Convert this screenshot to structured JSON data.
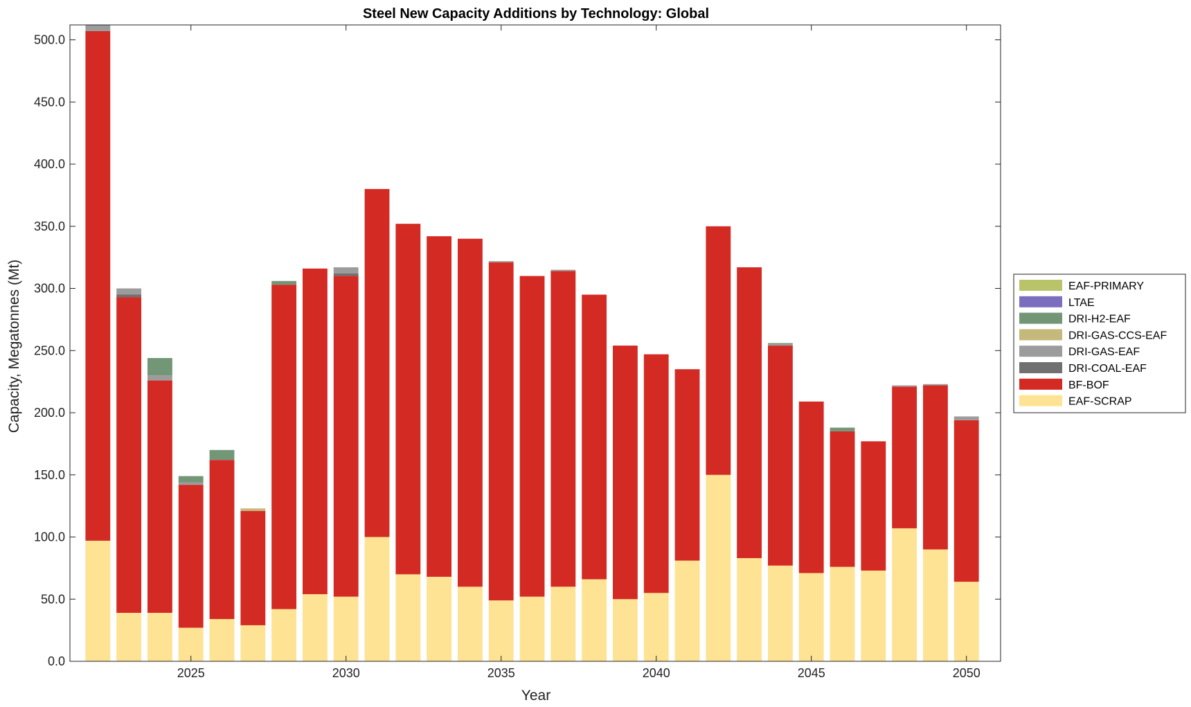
{
  "chart_data": {
    "type": "bar",
    "stacked": true,
    "title": "Steel New Capacity Additions by Technology: Global",
    "xlabel": "Year",
    "ylabel": "Capacity, Megatonnes (Mt)",
    "ylim": [
      0,
      512
    ],
    "xlim": [
      2021.1,
      2051.1
    ],
    "yticks": [
      0,
      50,
      100,
      150,
      200,
      250,
      300,
      350,
      400,
      450,
      500
    ],
    "ytick_labels": [
      "0.0",
      "50.0",
      "100.0",
      "150.0",
      "200.0",
      "250.0",
      "300.0",
      "350.0",
      "400.0",
      "450.0",
      "500.0"
    ],
    "xticks": [
      2025,
      2030,
      2035,
      2040,
      2045,
      2050
    ],
    "xtick_labels": [
      "2025",
      "2030",
      "2035",
      "2040",
      "2045",
      "2050"
    ],
    "legend_position": "outside-right",
    "categories": [
      2022,
      2023,
      2024,
      2025,
      2026,
      2027,
      2028,
      2029,
      2030,
      2031,
      2032,
      2033,
      2034,
      2035,
      2036,
      2037,
      2038,
      2039,
      2040,
      2041,
      2042,
      2043,
      2044,
      2045,
      2046,
      2047,
      2048,
      2049,
      2050
    ],
    "series": [
      {
        "name": "EAF-SCRAP",
        "color": "#fde393",
        "values": [
          97,
          39,
          39,
          27,
          34,
          29,
          42,
          54,
          52,
          100,
          70,
          68,
          60,
          49,
          52,
          60,
          66,
          50,
          55,
          81,
          150,
          83,
          77,
          71,
          76,
          73,
          107,
          90,
          64
        ]
      },
      {
        "name": "BF-BOF",
        "color": "#d42a24",
        "values": [
          410,
          254,
          187,
          115,
          128,
          92,
          261,
          262,
          258,
          280,
          282,
          274,
          280,
          272,
          258,
          254,
          229,
          204,
          192,
          154,
          200,
          234,
          177,
          138,
          109,
          104,
          114,
          132,
          130
        ]
      },
      {
        "name": "DRI-COAL-EAF",
        "color": "#707070",
        "values": [
          0,
          2,
          0,
          0,
          0,
          0,
          0,
          0,
          2,
          0,
          0,
          0,
          0,
          0,
          0,
          0,
          0,
          0,
          0,
          0,
          0,
          0,
          0,
          0,
          0,
          0,
          0,
          0,
          0
        ]
      },
      {
        "name": "DRI-GAS-EAF",
        "color": "#9c9c9c",
        "values": [
          5,
          5,
          4,
          2,
          0,
          0,
          0,
          0,
          5,
          0,
          0,
          0,
          0,
          1,
          0,
          1,
          0,
          0,
          0,
          0,
          0,
          0,
          1,
          0,
          0,
          0,
          1,
          1,
          3
        ]
      },
      {
        "name": "DRI-GAS-CCS-EAF",
        "color": "#c4b97a",
        "values": [
          0,
          0,
          0,
          0,
          0,
          2,
          0,
          0,
          0,
          0,
          0,
          0,
          0,
          0,
          0,
          0,
          0,
          0,
          0,
          0,
          0,
          0,
          0,
          0,
          0,
          0,
          0,
          0,
          0
        ]
      },
      {
        "name": "DRI-H2-EAF",
        "color": "#739677",
        "values": [
          0,
          0,
          14,
          5,
          8,
          0,
          3,
          0,
          0,
          0,
          0,
          0,
          0,
          0,
          0,
          0,
          0,
          0,
          0,
          0,
          0,
          0,
          1,
          0,
          3,
          0,
          0,
          0,
          0
        ]
      },
      {
        "name": "LTAE",
        "color": "#7b6ebf",
        "values": [
          0,
          0,
          0,
          0,
          0,
          0,
          0,
          0,
          0,
          0,
          0,
          0,
          0,
          0,
          0,
          0,
          0,
          0,
          0,
          0,
          0,
          0,
          0,
          0,
          0,
          0,
          0,
          0,
          0
        ]
      },
      {
        "name": "EAF-PRIMARY",
        "color": "#b9c46a",
        "values": [
          0,
          0,
          0,
          0,
          0,
          0,
          0,
          0,
          0,
          0,
          0,
          0,
          0,
          0,
          0,
          0,
          0,
          0,
          0,
          0,
          0,
          0,
          0,
          0,
          0,
          0,
          0,
          0,
          0
        ]
      }
    ],
    "legend_order": [
      "EAF-PRIMARY",
      "LTAE",
      "DRI-H2-EAF",
      "DRI-GAS-CCS-EAF",
      "DRI-GAS-EAF",
      "DRI-COAL-EAF",
      "BF-BOF",
      "EAF-SCRAP"
    ]
  }
}
